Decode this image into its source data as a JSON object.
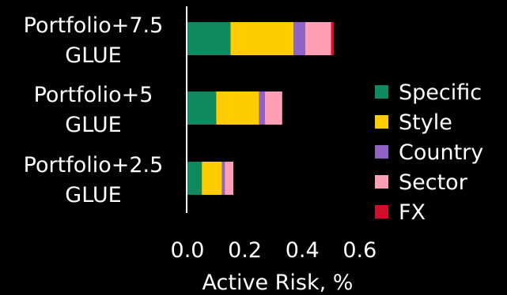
{
  "chart_data": {
    "type": "bar",
    "orientation": "horizontal",
    "stacked": true,
    "categories": [
      [
        "Portfolio+7.5",
        "GLUE"
      ],
      [
        "Portfolio+5",
        "GLUE"
      ],
      [
        "Portfolio+2.5",
        "GLUE"
      ]
    ],
    "series": [
      {
        "name": "Specific",
        "color": "#0f8a5f",
        "values": [
          0.15,
          0.1,
          0.05
        ]
      },
      {
        "name": "Style",
        "color": "#ffcc00",
        "values": [
          0.22,
          0.15,
          0.07
        ]
      },
      {
        "name": "Country",
        "color": "#8e63c5",
        "values": [
          0.04,
          0.02,
          0.01
        ]
      },
      {
        "name": "Sector",
        "color": "#ff9fb5",
        "values": [
          0.09,
          0.06,
          0.03
        ]
      },
      {
        "name": "FX",
        "color": "#d0102a",
        "values": [
          0.01,
          0.0,
          0.0
        ]
      }
    ],
    "xlabel": "Active Risk, %",
    "ylabel": "",
    "title": "",
    "xlim": [
      0.0,
      0.6
    ],
    "xticks": [
      0.0,
      0.2,
      0.4,
      0.6
    ],
    "xtick_labels": [
      "0.0",
      "0.2",
      "0.4",
      "0.6"
    ],
    "grid": false,
    "legend_position": "right"
  }
}
